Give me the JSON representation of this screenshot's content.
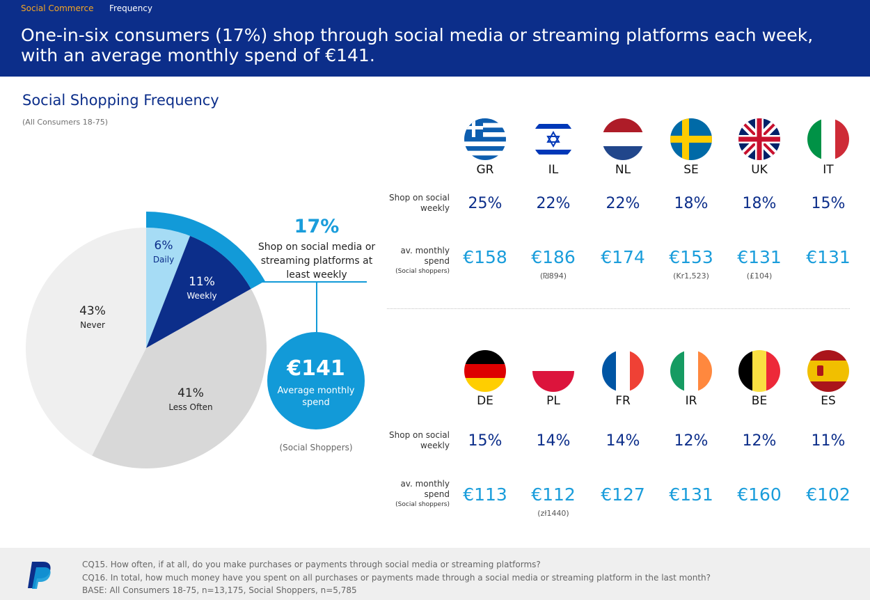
{
  "header": {
    "crumb_section": "Social Commerce",
    "crumb_page": "Frequency",
    "headline": "One-in-six consumers (17%) shop through social media or streaming platforms each week, with an average monthly spend of €141."
  },
  "section": {
    "title": "Social Shopping Frequency",
    "subtitle": "(All Consumers 18-75)"
  },
  "callout": {
    "big_pct": "17%",
    "text": "Shop on social media or streaming platforms at least weekly",
    "spend_amount": "€141",
    "spend_label": "Average monthly spend",
    "spend_base": "(Social Shoppers)"
  },
  "row_labels": {
    "weekly": "Shop on social weekly",
    "spend": "av. monthly spend",
    "spend_note": "(Social shoppers)"
  },
  "chart_data": {
    "type": "pie",
    "title": "Social Shopping Frequency",
    "subtitle": "(All Consumers 18-75)",
    "slices": [
      {
        "label": "Daily",
        "value": 6,
        "display": "6%",
        "color": "#a6dcf5"
      },
      {
        "label": "Weekly",
        "value": 11,
        "display": "11%",
        "color": "#0c2e8a"
      },
      {
        "label": "Less Often",
        "value": 41,
        "display": "41%",
        "color": "#d8d8d8"
      },
      {
        "label": "Never",
        "value": 43,
        "display": "43%",
        "color": "#efefef"
      }
    ],
    "highlight": {
      "label": "17%",
      "value": 17,
      "color": "#129ad8"
    },
    "countries": [
      {
        "code": "GR",
        "weekly": "25%",
        "spend": "€158",
        "local": "",
        "weekly_value": 25,
        "spend_value": 158
      },
      {
        "code": "IL",
        "weekly": "22%",
        "spend": "€186",
        "local": "(₪894)",
        "weekly_value": 22,
        "spend_value": 186
      },
      {
        "code": "NL",
        "weekly": "22%",
        "spend": "€174",
        "local": "",
        "weekly_value": 22,
        "spend_value": 174
      },
      {
        "code": "SE",
        "weekly": "18%",
        "spend": "€153",
        "local": "(Kr1,523)",
        "weekly_value": 18,
        "spend_value": 153
      },
      {
        "code": "UK",
        "weekly": "18%",
        "spend": "€131",
        "local": "(£104)",
        "weekly_value": 18,
        "spend_value": 131
      },
      {
        "code": "IT",
        "weekly": "15%",
        "spend": "€131",
        "local": "",
        "weekly_value": 15,
        "spend_value": 131
      },
      {
        "code": "DE",
        "weekly": "15%",
        "spend": "€113",
        "local": "",
        "weekly_value": 15,
        "spend_value": 113
      },
      {
        "code": "PL",
        "weekly": "14%",
        "spend": "€112",
        "local": "(zł1440)",
        "weekly_value": 14,
        "spend_value": 112
      },
      {
        "code": "FR",
        "weekly": "14%",
        "spend": "€127",
        "local": "",
        "weekly_value": 14,
        "spend_value": 127
      },
      {
        "code": "IR",
        "weekly": "12%",
        "spend": "€131",
        "local": "",
        "weekly_value": 12,
        "spend_value": 131
      },
      {
        "code": "BE",
        "weekly": "12%",
        "spend": "€160",
        "local": "",
        "weekly_value": 12,
        "spend_value": 160
      },
      {
        "code": "ES",
        "weekly": "11%",
        "spend": "€102",
        "local": "",
        "weekly_value": 11,
        "spend_value": 102
      }
    ]
  },
  "footer": {
    "q1": "CQ15. How often, if at all, do you make purchases or payments through social media or streaming platforms?",
    "q2": "CQ16. In total, how much money have you spent on all purchases or payments made through a social media or streaming platform in the last month?",
    "base": "BASE: All Consumers 18-75, n=13,175, Social Shoppers, n=5,785"
  },
  "colors": {
    "brand_navy": "#0c2e8a",
    "accent_blue": "#129ad8",
    "highlight_orange": "#f5a623"
  }
}
